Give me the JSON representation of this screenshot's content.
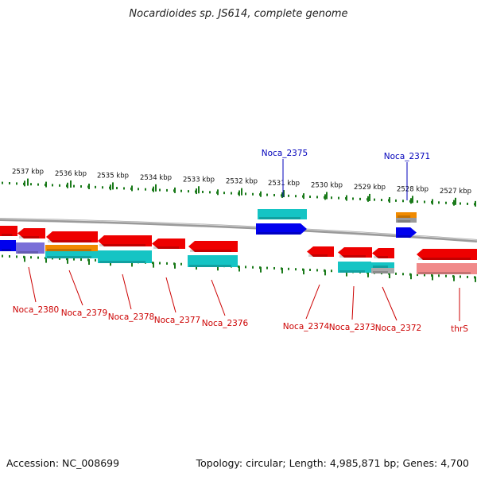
{
  "title": "Nocardioides sp. JS614, complete genome",
  "footer": {
    "accession": "Accession: NC_008699",
    "summary": "Topology: circular; Length: 4,985,871 bp; Genes: 4,700"
  },
  "colors": {
    "red": "#ee0000",
    "blue": "#0000ee",
    "cyan": "#15c4c4",
    "orange": "#f08a00",
    "purple": "#7a6fd8",
    "pink": "#f08a8a",
    "label_red": "#cc0000",
    "label_blue": "#0000bb",
    "backbone": "#888888",
    "tick": "#1a7a1a"
  },
  "ticks": [
    {
      "label": "2537 kbp"
    },
    {
      "label": "2536 kbp"
    },
    {
      "label": "2535 kbp"
    },
    {
      "label": "2534 kbp"
    },
    {
      "label": "2533 kbp"
    },
    {
      "label": "2532 kbp"
    },
    {
      "label": "2531 kbp"
    },
    {
      "label": "2530 kbp"
    },
    {
      "label": "2529 kbp"
    },
    {
      "label": "2528 kbp"
    },
    {
      "label": "2527 kbp"
    }
  ],
  "gene_labels": [
    {
      "name": "Noca_2375",
      "strand": "forward"
    },
    {
      "name": "Noca_2371",
      "strand": "forward"
    },
    {
      "name": "Noca_2380",
      "strand": "reverse"
    },
    {
      "name": "Noca_2379",
      "strand": "reverse"
    },
    {
      "name": "Noca_2378",
      "strand": "reverse"
    },
    {
      "name": "Noca_2377",
      "strand": "reverse"
    },
    {
      "name": "Noca_2376",
      "strand": "reverse"
    },
    {
      "name": "Noca_2374",
      "strand": "reverse"
    },
    {
      "name": "Noca_2373",
      "strand": "reverse"
    },
    {
      "name": "Noca_2372",
      "strand": "reverse"
    },
    {
      "name": "thrS",
      "strand": "reverse"
    }
  ]
}
